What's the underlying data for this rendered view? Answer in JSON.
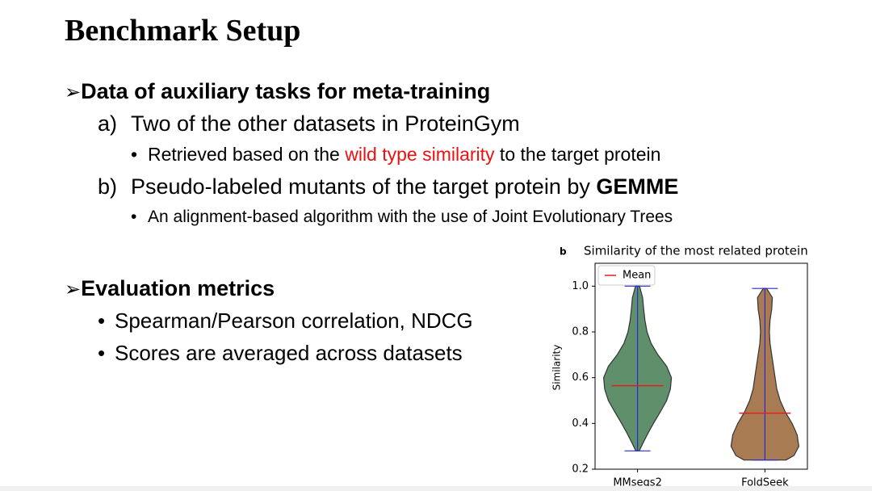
{
  "title": "Benchmark Setup",
  "sections": [
    {
      "marker": "➢",
      "heading": "Data of auxiliary tasks for meta-training",
      "items": [
        {
          "marker": "a)",
          "runs": [
            {
              "text": "Two of the other datasets in ProteinGym"
            }
          ],
          "subitems": [
            {
              "marker": "•",
              "runs": [
                {
                  "text": "Retrieved based on the "
                },
                {
                  "text": "wild type similarity",
                  "color": "#ee1111"
                },
                {
                  "text": " to the target protein"
                }
              ]
            }
          ]
        },
        {
          "marker": "b)",
          "runs": [
            {
              "text": "Pseudo-labeled mutants of the target protein by "
            },
            {
              "text": "GEMME",
              "bold": true
            }
          ],
          "subitems": [
            {
              "marker": "•",
              "runs": [
                {
                  "text": "An alignment-based algorithm with the use of Joint Evolutionary Trees"
                }
              ]
            }
          ]
        }
      ]
    },
    {
      "marker": "➢",
      "heading": "Evaluation metrics",
      "items": [
        {
          "marker": "•",
          "runs": [
            {
              "text": "Spearman/Pearson correlation, NDCG"
            }
          ],
          "subitems": []
        },
        {
          "marker": "•",
          "runs": [
            {
              "text": "Scores are averaged across datasets"
            }
          ],
          "subitems": []
        }
      ]
    }
  ],
  "chart_data": {
    "type": "violin",
    "panel_label": "b",
    "title": "Similarity of the most related protein",
    "ylabel": "Similarity",
    "categories": [
      "MMseqs2",
      "FoldSeek"
    ],
    "colors": [
      "#5f8f6b",
      "#a97b52"
    ],
    "means": [
      0.565,
      0.445
    ],
    "mins": [
      0.28,
      0.24
    ],
    "maxs": [
      1.0,
      0.99
    ],
    "densities": [
      {
        "y": [
          0.28,
          0.32,
          0.36,
          0.4,
          0.45,
          0.5,
          0.55,
          0.6,
          0.65,
          0.7,
          0.75,
          0.8,
          0.85,
          0.9,
          0.95,
          1.0
        ],
        "width": [
          0.05,
          0.18,
          0.32,
          0.47,
          0.67,
          0.86,
          0.97,
          1.0,
          0.86,
          0.6,
          0.4,
          0.28,
          0.22,
          0.18,
          0.15,
          0.06
        ]
      },
      {
        "y": [
          0.24,
          0.26,
          0.3,
          0.35,
          0.4,
          0.45,
          0.5,
          0.55,
          0.6,
          0.65,
          0.7,
          0.75,
          0.8,
          0.85,
          0.9,
          0.95,
          0.99
        ],
        "width": [
          0.62,
          0.86,
          1.0,
          0.95,
          0.8,
          0.6,
          0.45,
          0.35,
          0.3,
          0.25,
          0.2,
          0.15,
          0.13,
          0.15,
          0.2,
          0.22,
          0.05
        ]
      }
    ],
    "mean_color": "#e02020",
    "extrema_color": "#2a2ad0",
    "ylim": [
      0.2,
      1.1
    ],
    "yticks": [
      0.2,
      0.4,
      0.6,
      0.8,
      {
        "value": 1.0,
        "label": "1.0"
      }
    ],
    "legend": {
      "label": "Mean",
      "corner": "upper left"
    }
  }
}
